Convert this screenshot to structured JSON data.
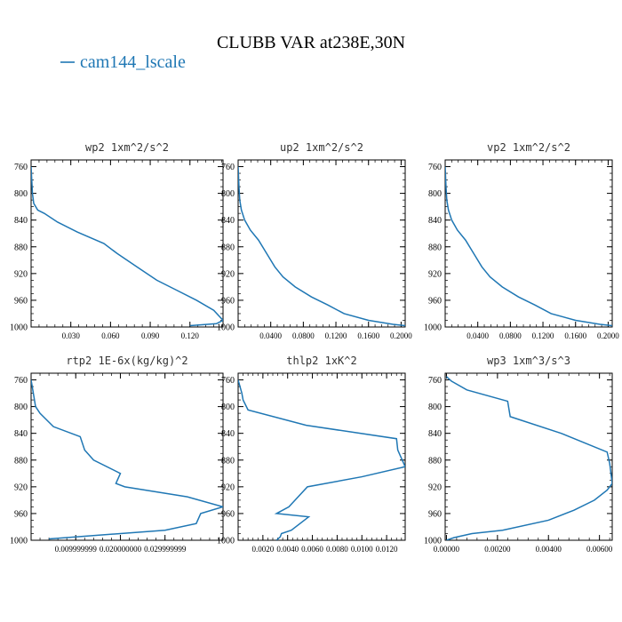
{
  "title": "CLUBB VAR at238E,30N",
  "legend": {
    "label": "cam144_lscale",
    "color": "#1f77b4"
  },
  "chart_data": [
    {
      "type": "line",
      "title": "wp2  1xm^2/s^2",
      "ylim": [
        1000,
        750
      ],
      "yticks": [
        760,
        800,
        840,
        880,
        920,
        960,
        1000
      ],
      "xlim": [
        0,
        0.145
      ],
      "xticks": [
        0.03,
        0.06,
        0.09,
        0.12
      ],
      "xticklabels": [
        "0.030",
        "0.060",
        "0.090",
        "0.120"
      ],
      "series": [
        {
          "name": "cam144_lscale",
          "color": "#1f77b4",
          "x": [
            0.0,
            0.0005,
            0.001,
            0.002,
            0.005,
            0.01,
            0.02,
            0.035,
            0.055,
            0.065,
            0.08,
            0.095,
            0.11,
            0.125,
            0.138,
            0.145,
            0.14,
            0.12
          ],
          "y": [
            760,
            780,
            800,
            815,
            825,
            830,
            843,
            858,
            875,
            890,
            910,
            930,
            945,
            960,
            975,
            990,
            995,
            998
          ]
        }
      ]
    },
    {
      "type": "line",
      "title": "up2  1xm^2/s^2",
      "ylim": [
        1000,
        750
      ],
      "yticks": [
        760,
        800,
        840,
        880,
        920,
        960,
        1000
      ],
      "xlim": [
        0,
        0.205
      ],
      "xticks": [
        0.04,
        0.08,
        0.12,
        0.16,
        0.2
      ],
      "xticklabels": [
        "0.0400",
        "0.0800",
        "0.1200",
        "0.1600",
        "0.2000"
      ],
      "series": [
        {
          "name": "cam144_lscale",
          "color": "#1f77b4",
          "x": [
            0.0,
            0.001,
            0.002,
            0.004,
            0.008,
            0.015,
            0.025,
            0.035,
            0.045,
            0.055,
            0.07,
            0.09,
            0.11,
            0.13,
            0.16,
            0.19,
            0.205
          ],
          "y": [
            760,
            790,
            810,
            825,
            840,
            855,
            870,
            890,
            910,
            925,
            940,
            955,
            967,
            980,
            990,
            996,
            998
          ]
        }
      ]
    },
    {
      "type": "line",
      "title": "vp2  1xm^2/s^2",
      "ylim": [
        1000,
        750
      ],
      "yticks": [
        760,
        800,
        840,
        880,
        920,
        960,
        1000
      ],
      "xlim": [
        0,
        0.205
      ],
      "xticks": [
        0.04,
        0.08,
        0.12,
        0.16,
        0.2
      ],
      "xticklabels": [
        "0.0400",
        "0.0800",
        "0.1200",
        "0.1600",
        "0.2000"
      ],
      "series": [
        {
          "name": "cam144_lscale",
          "color": "#1f77b4",
          "x": [
            0.0,
            0.001,
            0.002,
            0.004,
            0.008,
            0.015,
            0.025,
            0.035,
            0.045,
            0.055,
            0.07,
            0.09,
            0.11,
            0.13,
            0.16,
            0.19,
            0.205
          ],
          "y": [
            760,
            790,
            810,
            825,
            840,
            855,
            870,
            890,
            910,
            925,
            940,
            955,
            967,
            980,
            990,
            996,
            998
          ]
        }
      ]
    },
    {
      "type": "line",
      "title": "rtp2  1E-6x(kg/kg)^2",
      "ylim": [
        1000,
        750
      ],
      "yticks": [
        760,
        800,
        840,
        880,
        920,
        960,
        1000
      ],
      "xlim": [
        0,
        0.043
      ],
      "xticks": [
        0.01,
        0.02,
        0.03
      ],
      "xticklabels": [
        "0.009999999",
        "0.020000000",
        "0.029999999"
      ],
      "series": [
        {
          "name": "cam144_lscale",
          "color": "#1f77b4",
          "x": [
            0.0,
            0.0005,
            0.001,
            0.002,
            0.005,
            0.011,
            0.012,
            0.014,
            0.02,
            0.019,
            0.021,
            0.035,
            0.043,
            0.038,
            0.037,
            0.03,
            0.02,
            0.004
          ],
          "y": [
            760,
            780,
            800,
            810,
            830,
            845,
            865,
            880,
            900,
            915,
            920,
            935,
            950,
            960,
            975,
            985,
            990,
            998
          ]
        }
      ]
    },
    {
      "type": "line",
      "title": "thlp2  1xK^2",
      "ylim": [
        1000,
        750
      ],
      "yticks": [
        760,
        800,
        840,
        880,
        920,
        960,
        1000
      ],
      "xlim": [
        0,
        0.0135
      ],
      "xticks": [
        0.002,
        0.004,
        0.006,
        0.008,
        0.01,
        0.012
      ],
      "xticklabels": [
        "0.0020",
        "0.0040",
        "0.0060",
        "0.0080",
        "0.0100",
        "0.0120"
      ],
      "series": [
        {
          "name": "cam144_lscale",
          "color": "#1f77b4",
          "x": [
            0.0,
            0.0003,
            0.0004,
            0.0008,
            0.0055,
            0.0128,
            0.0129,
            0.0135,
            0.01,
            0.0056,
            0.0046,
            0.0041,
            0.0031,
            0.0057,
            0.0043,
            0.0035,
            0.0034,
            0.0031
          ],
          "y": [
            760,
            780,
            790,
            805,
            828,
            848,
            865,
            890,
            905,
            920,
            940,
            950,
            960,
            965,
            985,
            990,
            995,
            1000
          ]
        }
      ]
    },
    {
      "type": "line",
      "title": "wp3  1xm^3/s^3",
      "ylim": [
        1000,
        750
      ],
      "yticks": [
        760,
        800,
        840,
        880,
        920,
        960,
        1000
      ],
      "xlim": [
        -5e-05,
        0.0065
      ],
      "xticks": [
        0.0,
        0.002,
        0.004,
        0.006
      ],
      "xticklabels": [
        "0.00000",
        "0.00200",
        "0.00400",
        "0.00600"
      ],
      "series": [
        {
          "name": "cam144_lscale",
          "color": "#1f77b4",
          "x": [
            0.0,
            0.0002,
            0.0008,
            0.0024,
            0.0025,
            0.0045,
            0.0063,
            0.0064,
            0.0065,
            0.0063,
            0.0058,
            0.005,
            0.004,
            0.0022,
            0.001,
            0.0003,
            0.0
          ],
          "y": [
            755,
            762,
            775,
            792,
            815,
            840,
            868,
            885,
            915,
            925,
            940,
            955,
            970,
            985,
            990,
            996,
            1000
          ]
        }
      ]
    }
  ]
}
